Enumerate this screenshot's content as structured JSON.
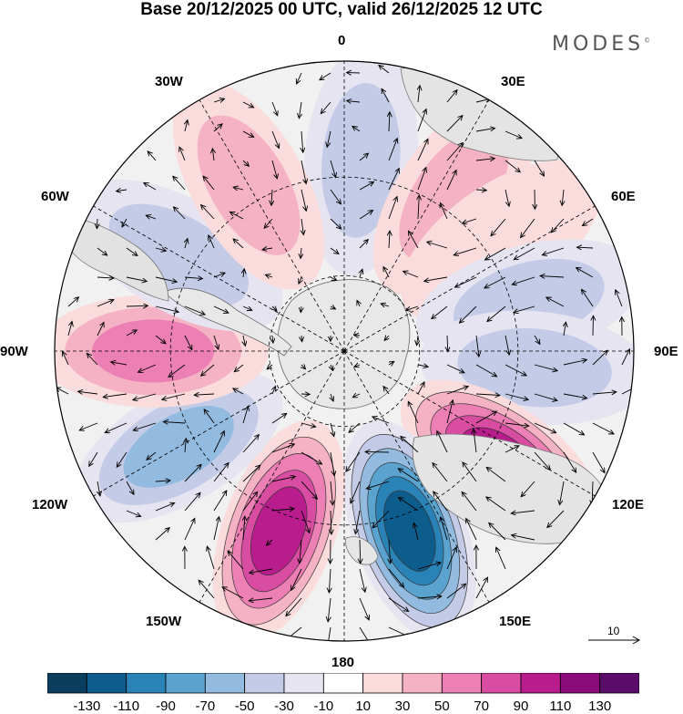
{
  "title": "Base 20/12/2025 00 UTC, valid 26/12/2025 12 UTC",
  "brand": "MODES",
  "brand_mark": "©",
  "longitude_labels": {
    "top": "0",
    "top_right": "30E",
    "right_upper": "60E",
    "right": "90E",
    "right_lower": "120E",
    "bottom_right": "150E",
    "bottom": "180",
    "bottom_left": "150W",
    "left_lower": "120W",
    "left": "90W",
    "left_upper": "60W",
    "top_left": "30W"
  },
  "colorbar": {
    "ticks": [
      "-130",
      "-110",
      "-90",
      "-70",
      "-50",
      "-30",
      "-10",
      "10",
      "30",
      "50",
      "70",
      "90",
      "110",
      "130"
    ],
    "colors": [
      "#0b3d5e",
      "#0d5d8c",
      "#2a83b6",
      "#5aa3cf",
      "#93bbe0",
      "#c3cbe7",
      "#e6e4f1",
      "#ffffff",
      "#fadcdc",
      "#f5b2c4",
      "#ec7fb3",
      "#d84da1",
      "#b91c8d",
      "#8a0a7a",
      "#5a0c6a"
    ]
  },
  "vector_reference": "10",
  "map_data": {
    "projection": "south polar stereographic",
    "anomalies": [
      {
        "lon": 5,
        "value": -45
      },
      {
        "lon": 35,
        "value": 45
      },
      {
        "lon": 55,
        "value": 25
      },
      {
        "lon": 75,
        "value": -35
      },
      {
        "lon": 95,
        "value": -45
      },
      {
        "lon": 125,
        "value": 105
      },
      {
        "lon": 160,
        "value": -125
      },
      {
        "lon": 200,
        "value": 95
      },
      {
        "lon": 240,
        "value": -55
      },
      {
        "lon": 270,
        "value": 55
      },
      {
        "lon": 300,
        "value": -35
      },
      {
        "lon": 330,
        "value": 35
      }
    ]
  }
}
